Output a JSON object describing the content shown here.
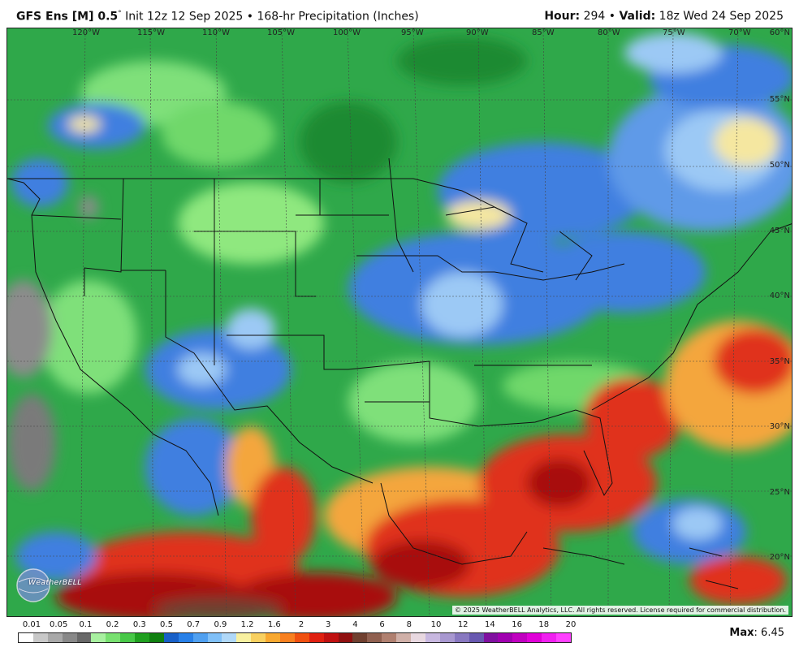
{
  "header": {
    "model": "GFS Ens [M] 0.5",
    "degree_symbol": "°",
    "init_text": "Init 12z 12 Sep 2025",
    "separator": "•",
    "product": "168-hr Precipitation (Inches)",
    "hour_label": "Hour:",
    "hour_value": "294",
    "valid_label": "Valid:",
    "valid_value": "18z Wed 24 Sep 2025"
  },
  "map": {
    "longitude_labels": [
      "120°W",
      "115°W",
      "110°W",
      "105°W",
      "100°W",
      "95°W",
      "90°W",
      "85°W",
      "80°W",
      "75°W",
      "70°W"
    ],
    "latitude_labels": [
      "60°N",
      "55°N",
      "50°N",
      "45°N",
      "40°N",
      "35°N",
      "30°N",
      "25°N",
      "20°N"
    ],
    "copyright": "© 2025 WeatherBELL Analytics, LLC. All rights reserved. License required for commercial distribution.",
    "logo_text": "WeatherBELL",
    "colors": {
      "dry_land_low": "#2fa84a",
      "moist_blue": "#3f7fe0",
      "light_blue": "#9cc9f5",
      "yellow": "#f5e7a0",
      "orange": "#f4a63c",
      "red": "#e0301e",
      "dark_red": "#a81010",
      "gray": "#8c8c8c"
    }
  },
  "legend": {
    "labels": [
      "0.01",
      "0.05",
      "0.1",
      "0.2",
      "0.3",
      "0.5",
      "0.7",
      "0.9",
      "1.2",
      "1.6",
      "2",
      "3",
      "4",
      "6",
      "8",
      "10",
      "12",
      "14",
      "16",
      "18",
      "20"
    ],
    "colors": [
      "#ffffff",
      "#c8c8c8",
      "#a8a8a8",
      "#888888",
      "#686868",
      "#a8f0a0",
      "#78e070",
      "#48c848",
      "#20a020",
      "#108010",
      "#1860c8",
      "#2880e8",
      "#50a0f0",
      "#80c0f8",
      "#b0d8f8",
      "#f8f0a0",
      "#f8d060",
      "#f8a830",
      "#f88020",
      "#f05010",
      "#e02010",
      "#c01010",
      "#901010",
      "#704030",
      "#906050",
      "#b08070",
      "#d0b0a8",
      "#e8d8e0",
      "#c8b8e0",
      "#a898d0",
      "#8878c0",
      "#6858b0",
      "#8010a0",
      "#a000b0",
      "#c000c0",
      "#e000d8",
      "#f020f0",
      "#ff40ff"
    ]
  },
  "max": {
    "label": "Max",
    "value": "6.45"
  }
}
